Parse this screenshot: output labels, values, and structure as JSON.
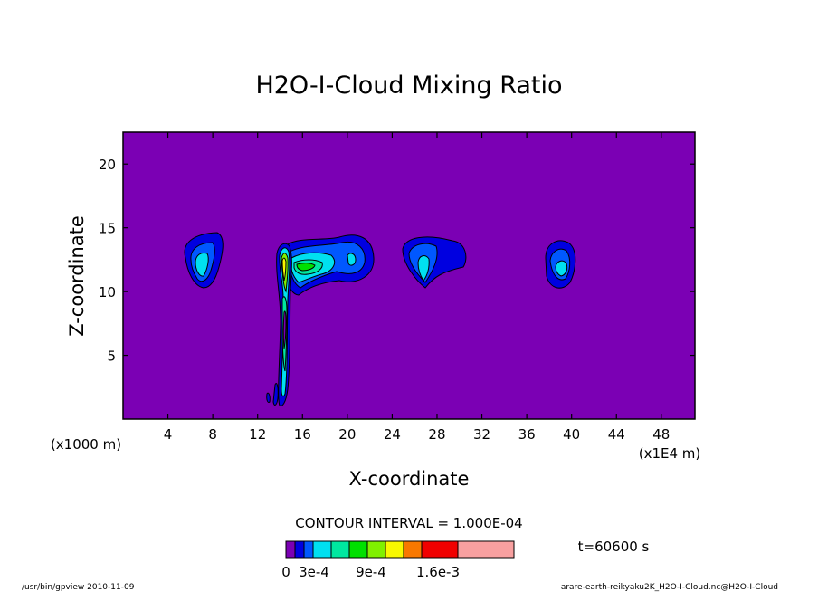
{
  "chart_data": {
    "type": "heatmap",
    "title": "H2O-I-Cloud Mixing Ratio",
    "xlabel": "X-coordinate",
    "ylabel": "Z-coordinate",
    "x_unit": "(x1E4 m)",
    "y_unit": "(x1000 m)",
    "xlim": [
      0,
      51
    ],
    "ylim": [
      0,
      22.5
    ],
    "x_ticks": [
      "4",
      "8",
      "12",
      "16",
      "20",
      "24",
      "28",
      "32",
      "36",
      "40",
      "44",
      "48"
    ],
    "y_ticks": [
      "5",
      "10",
      "15",
      "20"
    ],
    "contour_interval": "CONTOUR INTERVAL = 1.000E-04",
    "time_label": "t=60600 s",
    "colorbar_labels": [
      "0",
      "3e-4",
      "9e-4",
      "1.6e-3"
    ],
    "colorbar_colors": [
      "#7b00b4",
      "#0000e0",
      "#0058ff",
      "#00e0f0",
      "#00e8a0",
      "#00e000",
      "#80f000",
      "#f8f800",
      "#f87800",
      "#f00000",
      "#f8a0a0"
    ],
    "background_color": "#7b00b4",
    "cloud_cells": [
      {
        "x": 7.2,
        "z": 12.5,
        "peak_level": 3
      },
      {
        "x": 14.5,
        "z": 7.0,
        "peak_level": 8
      },
      {
        "x": 17.5,
        "z": 12.2,
        "peak_level": 6
      },
      {
        "x": 21.0,
        "z": 13.0,
        "peak_level": 3
      },
      {
        "x": 27.0,
        "z": 12.5,
        "peak_level": 3
      },
      {
        "x": 39.0,
        "z": 12.3,
        "peak_level": 3
      }
    ]
  },
  "footer": {
    "left": "/usr/bin/gpview  2010-11-09",
    "right": "arare-earth-reikyaku2K_H2O-I-Cloud.nc@H2O-I-Cloud"
  }
}
